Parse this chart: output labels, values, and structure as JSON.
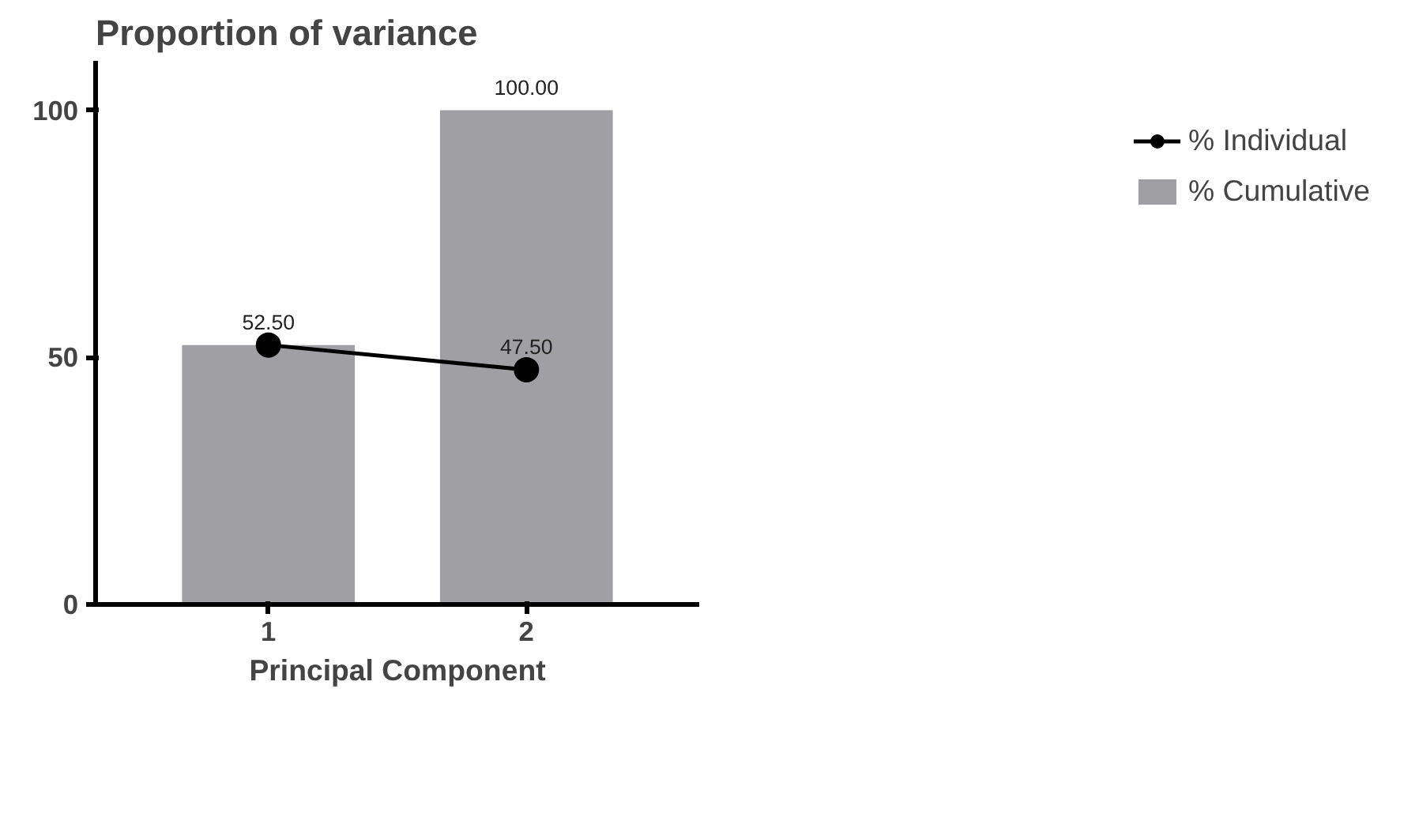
{
  "chart_data": {
    "type": "bar",
    "title": "Proportion of variance",
    "xlabel": "Principal Component",
    "categories": [
      "1",
      "2"
    ],
    "series": [
      {
        "name": "% Individual",
        "type": "line",
        "color": "#000000",
        "values": [
          52.5,
          47.5
        ],
        "value_labels": [
          "52.50",
          "47.50"
        ],
        "marker": "circle"
      },
      {
        "name": "% Cumulative",
        "type": "bar",
        "color": "#a09fa4",
        "values": [
          52.5,
          100
        ],
        "value_labels": [
          null,
          "100.00"
        ]
      }
    ],
    "ylim": [
      0,
      110
    ],
    "yticks": [
      0,
      50,
      100
    ],
    "grid": false,
    "legend": "top right"
  }
}
